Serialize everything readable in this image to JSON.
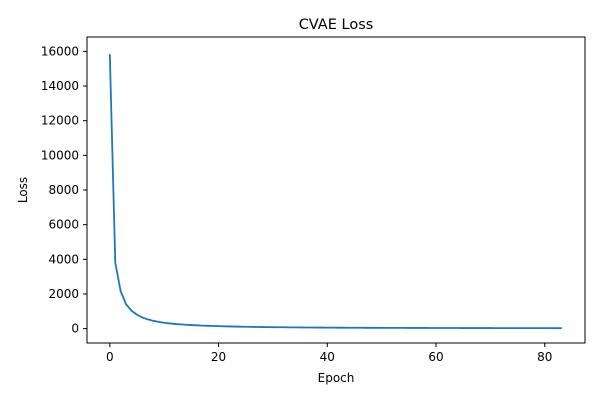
{
  "chart_data": {
    "type": "line",
    "title": "CVAE Loss",
    "xlabel": "Epoch",
    "ylabel": "Loss",
    "xlim": [
      -4.2,
      87.4
    ],
    "ylim": [
      -830,
      16830
    ],
    "xticks": [
      0,
      20,
      40,
      60,
      80
    ],
    "yticks": [
      0,
      2000,
      4000,
      6000,
      8000,
      10000,
      12000,
      14000,
      16000
    ],
    "grid": false,
    "legend": "none",
    "line_color": "#1f77b4",
    "series": [
      {
        "x": [
          0,
          1,
          2,
          3,
          4,
          5,
          6,
          7,
          8,
          9,
          10,
          11,
          12,
          13,
          14,
          15,
          16,
          17,
          18,
          19,
          20,
          21,
          22,
          23,
          24,
          25,
          26,
          27,
          28,
          29,
          30,
          31,
          32,
          33,
          34,
          35,
          36,
          37,
          38,
          39,
          40,
          41,
          42,
          43,
          44,
          45,
          46,
          47,
          48,
          49,
          50,
          51,
          52,
          53,
          54,
          55,
          56,
          57,
          58,
          59,
          60,
          61,
          62,
          63,
          64,
          65,
          66,
          67,
          68,
          69,
          70,
          71,
          72,
          73,
          74,
          75,
          76,
          77,
          78,
          79,
          80,
          81,
          82,
          83
        ],
        "values": [
          15800,
          3800,
          2150,
          1400,
          1030,
          800,
          640,
          530,
          450,
          390,
          340,
          300,
          270,
          245,
          225,
          205,
          190,
          175,
          163,
          152,
          142,
          133,
          125,
          118,
          112,
          106,
          100,
          95,
          91,
          87,
          83,
          80,
          77,
          74,
          71,
          69,
          66,
          64,
          62,
          60,
          58,
          56,
          55,
          53,
          52,
          50,
          49,
          48,
          47,
          46,
          45,
          44,
          43,
          42,
          41,
          40,
          39,
          38,
          38,
          37,
          36,
          36,
          35,
          34,
          34,
          33,
          33,
          32,
          32,
          31,
          31,
          30,
          30,
          29,
          29,
          29,
          28,
          28,
          28,
          27,
          27,
          27,
          26,
          26
        ]
      }
    ]
  }
}
